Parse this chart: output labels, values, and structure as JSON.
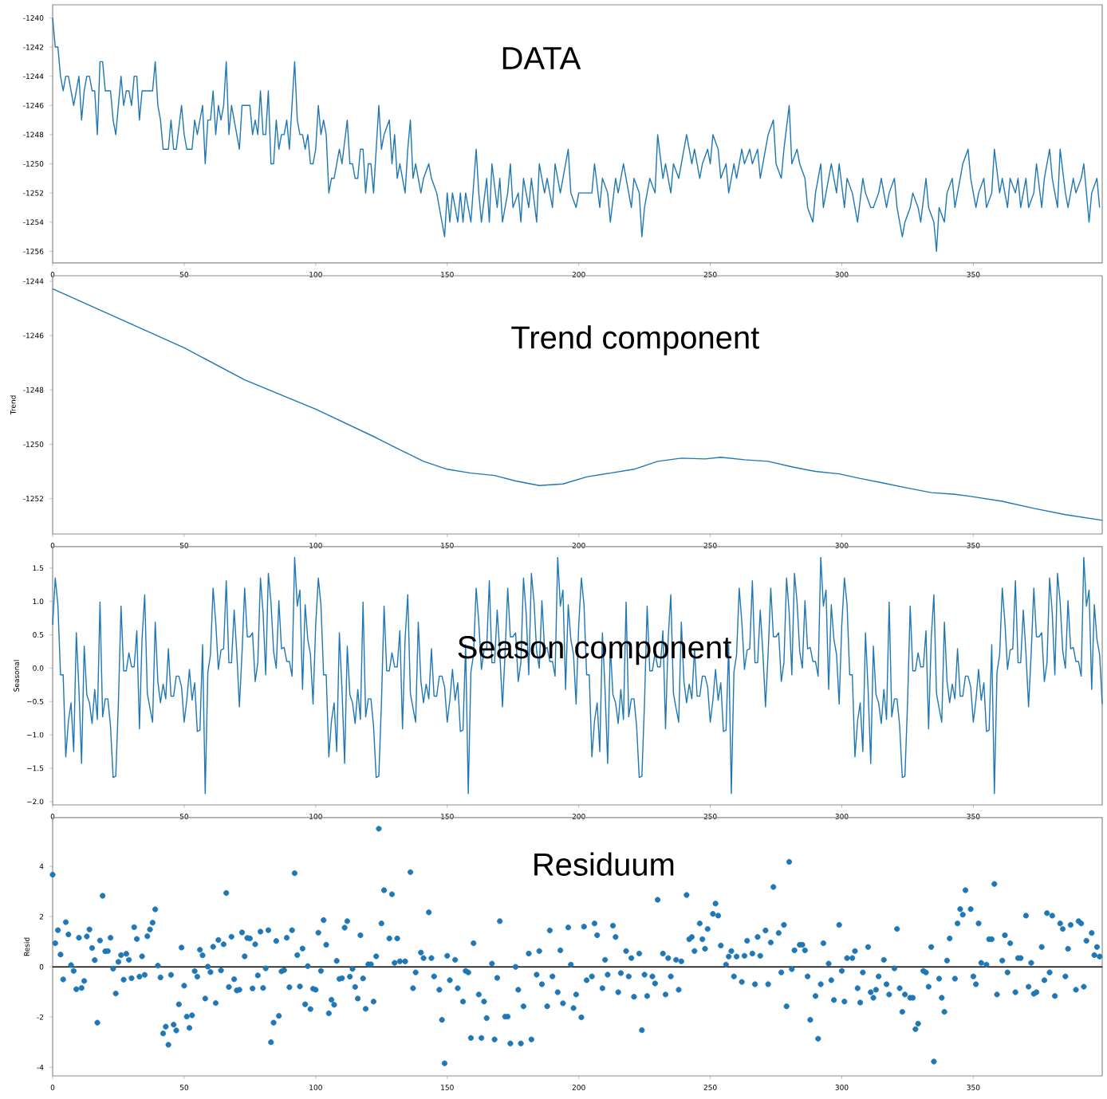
{
  "chart_data": [
    {
      "type": "line",
      "title": "DATA",
      "color": "#1f77b4",
      "xlim": [
        0,
        399
      ],
      "ylim": [
        -1256.8,
        -1239.1
      ],
      "xticks": [
        0,
        50,
        100,
        150,
        200,
        250,
        300,
        350
      ],
      "yticks": [
        -1240,
        -1242,
        -1244,
        -1246,
        -1248,
        -1250,
        -1252,
        -1254,
        -1256
      ],
      "x": [
        0,
        1,
        2,
        3,
        4,
        5,
        6,
        8,
        10,
        11,
        12,
        13,
        14,
        15,
        16,
        17,
        18,
        19,
        20,
        22,
        23,
        24,
        26,
        27,
        28,
        29,
        30,
        31,
        32,
        33,
        34,
        38,
        39,
        40,
        41,
        42,
        44,
        45,
        46,
        47,
        49,
        50,
        51,
        53,
        54,
        55,
        57,
        58,
        59,
        60,
        61,
        62,
        63,
        64,
        65,
        66,
        67,
        68,
        71,
        72,
        75,
        76,
        77,
        78,
        79,
        80,
        81,
        82,
        83,
        84,
        85,
        86,
        87,
        88,
        89,
        90,
        91,
        92,
        93,
        94,
        95,
        96,
        97,
        98,
        99,
        100,
        101,
        102,
        103,
        104,
        105,
        106,
        107,
        109,
        110,
        112,
        113,
        114,
        115,
        116,
        117,
        118,
        119,
        120,
        121,
        122,
        124,
        125,
        126,
        128,
        129,
        130,
        131,
        132,
        134,
        135,
        136,
        137,
        138,
        140,
        141,
        143,
        144,
        146,
        147,
        149,
        150,
        151,
        152,
        154,
        155,
        156,
        157,
        159,
        161,
        162,
        163,
        165,
        166,
        167,
        169,
        170,
        171,
        173,
        174,
        175,
        177,
        178,
        179,
        181,
        182,
        184,
        185,
        187,
        188,
        190,
        191,
        193,
        194,
        196,
        197,
        199,
        200,
        205,
        206,
        208,
        209,
        211,
        212,
        214,
        215,
        217,
        218,
        220,
        221,
        223,
        224,
        225,
        226,
        227,
        229,
        230,
        232,
        233,
        235,
        236,
        238,
        239,
        241,
        243,
        244,
        246,
        247,
        249,
        250,
        251,
        253,
        254,
        256,
        257,
        259,
        260,
        262,
        263,
        265,
        266,
        268,
        269,
        271,
        272,
        274,
        275,
        277,
        278,
        280,
        281,
        283,
        284,
        286,
        287,
        289,
        290,
        292,
        293,
        295,
        296,
        298,
        299,
        301,
        302,
        304,
        305,
        306,
        308,
        309,
        311,
        312,
        314,
        315,
        317,
        318,
        320,
        321,
        323,
        324,
        326,
        327,
        329,
        330,
        332,
        333,
        335,
        336,
        337,
        339,
        340,
        342,
        343,
        345,
        346,
        348,
        349,
        351,
        352,
        354,
        355,
        357,
        358,
        360,
        361,
        363,
        364,
        366,
        367,
        368,
        370,
        371,
        373,
        374,
        376,
        377,
        379,
        380,
        382,
        383,
        385,
        386,
        388,
        389,
        391,
        392,
        394,
        395,
        397,
        398
      ],
      "values": [
        -1240,
        -1242,
        -1242,
        -1244,
        -1245,
        -1244,
        -1244,
        -1246,
        -1244,
        -1247,
        -1245,
        -1244,
        -1244,
        -1245,
        -1245,
        -1248,
        -1243,
        -1243,
        -1245,
        -1245,
        -1247,
        -1248,
        -1244,
        -1246,
        -1245,
        -1245,
        -1246,
        -1244,
        -1244,
        -1247,
        -1245,
        -1245,
        -1243,
        -1246,
        -1247,
        -1249,
        -1249,
        -1247,
        -1249,
        -1249,
        -1246,
        -1248,
        -1249,
        -1249,
        -1247,
        -1248,
        -1246,
        -1250,
        -1247,
        -1247,
        -1245,
        -1248,
        -1246,
        -1247,
        -1246,
        -1243,
        -1248,
        -1246,
        -1249,
        -1246,
        -1246,
        -1248,
        -1247,
        -1248,
        -1245,
        -1248,
        -1248,
        -1245,
        -1250,
        -1250,
        -1247,
        -1249,
        -1248,
        -1248,
        -1247,
        -1249,
        -1246,
        -1243,
        -1247,
        -1248,
        -1248,
        -1249,
        -1248,
        -1250,
        -1250,
        -1249,
        -1246,
        -1248,
        -1247,
        -1248,
        -1252,
        -1251,
        -1251,
        -1249,
        -1250,
        -1247,
        -1250,
        -1250,
        -1251,
        -1251,
        -1249,
        -1249,
        -1252,
        -1250,
        -1250,
        -1252,
        -1246,
        -1249,
        -1248,
        -1247,
        -1250,
        -1248,
        -1251,
        -1250,
        -1252,
        -1249,
        -1247,
        -1251,
        -1250,
        -1252,
        -1251,
        -1250,
        -1251,
        -1252,
        -1253,
        -1255,
        -1252,
        -1254,
        -1252,
        -1254,
        -1252,
        -1254,
        -1252,
        -1254,
        -1249,
        -1252,
        -1254,
        -1251,
        -1254,
        -1250,
        -1253,
        -1251,
        -1254,
        -1252,
        -1250,
        -1253,
        -1252,
        -1254,
        -1251,
        -1253,
        -1251,
        -1254,
        -1250,
        -1252,
        -1251,
        -1253,
        -1250,
        -1252,
        -1251,
        -1249,
        -1252,
        -1253,
        -1252,
        -1252,
        -1250,
        -1253,
        -1251,
        -1252,
        -1254,
        -1251,
        -1252,
        -1250,
        -1251,
        -1253,
        -1251,
        -1252,
        -1255,
        -1253,
        -1252,
        -1251,
        -1252,
        -1248,
        -1251,
        -1250,
        -1252,
        -1250,
        -1251,
        -1250,
        -1248,
        -1250,
        -1249,
        -1251,
        -1250,
        -1249,
        -1250,
        -1248,
        -1249,
        -1251,
        -1250,
        -1252,
        -1250,
        -1251,
        -1249,
        -1250,
        -1249,
        -1250,
        -1249,
        -1251,
        -1249,
        -1248,
        -1247,
        -1250,
        -1251,
        -1249,
        -1246,
        -1250,
        -1249,
        -1250,
        -1251,
        -1253,
        -1254,
        -1252,
        -1250,
        -1253,
        -1251,
        -1250,
        -1252,
        -1250,
        -1253,
        -1251,
        -1252,
        -1253,
        -1254,
        -1251,
        -1252,
        -1253,
        -1253,
        -1252,
        -1251,
        -1253,
        -1252,
        -1251,
        -1253,
        -1255,
        -1254,
        -1253,
        -1252,
        -1253,
        -1254,
        -1251,
        -1253,
        -1254,
        -1256,
        -1253,
        -1254,
        -1252,
        -1251,
        -1253,
        -1251,
        -1250,
        -1249,
        -1251,
        -1253,
        -1252,
        -1251,
        -1253,
        -1252,
        -1249,
        -1252,
        -1251,
        -1253,
        -1251,
        -1252,
        -1251,
        -1253,
        -1251,
        -1253,
        -1252,
        -1250,
        -1253,
        -1251,
        -1249,
        -1251,
        -1253,
        -1249,
        -1252,
        -1253,
        -1251,
        -1252,
        -1251,
        -1250,
        -1254,
        -1252,
        -1251,
        -1253
      ]
    },
    {
      "type": "line",
      "title": "Trend component",
      "ylabel": "Trend",
      "color": "#1f77b4",
      "xlim": [
        0,
        399
      ],
      "ylim": [
        -1253.3,
        -1243.8
      ],
      "xticks": [
        0,
        50,
        100,
        150,
        200,
        250,
        300,
        350
      ],
      "yticks": [
        -1244,
        -1246,
        -1248,
        -1250,
        -1252
      ],
      "x": [
        0,
        50,
        73,
        100,
        123,
        132,
        141,
        150,
        159,
        168,
        176,
        185,
        194,
        203,
        212,
        221,
        230,
        239,
        248,
        254,
        263,
        272,
        281,
        290,
        299,
        307,
        316,
        325,
        334,
        343,
        349,
        361,
        373,
        385,
        399
      ],
      "values": [
        -1244.28,
        -1246.45,
        -1247.63,
        -1248.71,
        -1249.76,
        -1250.2,
        -1250.63,
        -1250.92,
        -1251.06,
        -1251.15,
        -1251.35,
        -1251.52,
        -1251.46,
        -1251.2,
        -1251.06,
        -1250.92,
        -1250.63,
        -1250.51,
        -1250.54,
        -1250.48,
        -1250.57,
        -1250.63,
        -1250.83,
        -1251.0,
        -1251.09,
        -1251.26,
        -1251.43,
        -1251.61,
        -1251.78,
        -1251.84,
        -1251.92,
        -1252.1,
        -1252.36,
        -1252.59,
        -1252.8
      ]
    },
    {
      "type": "line",
      "title": "Season component",
      "ylabel": "Seasonal",
      "color": "#1f77b4",
      "xlim": [
        0,
        399
      ],
      "ylim": [
        -2.05,
        1.82
      ],
      "xticks": [
        0,
        50,
        100,
        150,
        200,
        250,
        300,
        350
      ],
      "yticks": [
        {
          "value": 1.5,
          "label": "1.5"
        },
        {
          "value": 1,
          "label": "1.0"
        },
        {
          "value": 0.5,
          "label": "0.5"
        },
        {
          "value": 0,
          "label": "0.0"
        },
        {
          "value": -0.5,
          "label": "−0.5"
        },
        {
          "value": -1,
          "label": "−1.0"
        },
        {
          "value": -1.5,
          "label": "−1.5"
        },
        {
          "value": -2,
          "label": "−2.0"
        }
      ],
      "x": [
        0,
        1,
        2,
        3,
        4,
        5,
        6,
        7,
        8,
        9,
        10,
        11,
        12,
        13,
        14,
        15,
        16,
        17,
        18,
        19,
        20,
        21,
        22,
        23,
        24,
        25,
        26,
        27,
        28,
        29,
        30,
        31,
        32,
        33,
        34,
        35,
        36,
        37,
        38,
        39,
        40,
        41,
        42,
        43,
        44,
        45,
        46,
        47,
        48,
        49,
        50,
        51,
        52,
        53,
        54,
        55,
        56,
        57,
        58,
        59,
        60,
        61,
        62,
        63,
        64,
        65,
        66,
        67,
        68,
        69,
        70,
        71,
        72,
        73,
        74,
        75,
        76,
        77,
        78,
        79,
        80,
        81,
        82,
        83,
        84,
        85,
        86,
        87,
        88,
        89,
        90,
        91,
        92,
        93,
        94,
        95,
        96,
        97,
        98,
        99,
        100,
        101,
        102,
        103,
        104,
        105,
        106,
        107,
        108,
        109,
        110,
        111,
        112,
        113,
        114,
        115,
        116,
        117,
        118,
        119,
        120,
        121,
        122,
        123,
        124,
        125,
        126,
        127,
        128,
        129,
        130,
        131,
        132,
        133,
        134,
        135,
        136,
        137,
        138,
        139,
        140,
        141,
        142,
        143,
        144,
        145,
        146,
        147,
        148,
        149,
        150,
        151,
        152,
        153,
        154,
        155,
        156,
        157,
        158,
        159,
        160,
        161,
        162,
        163,
        164,
        165,
        166,
        167,
        168,
        169,
        170,
        171,
        172,
        173,
        174,
        175,
        176,
        177,
        178,
        179,
        180,
        181,
        182,
        183,
        184,
        185,
        186,
        187,
        188,
        189,
        190,
        191,
        192,
        193,
        194,
        195,
        196,
        197,
        198,
        199,
        200,
        201,
        202,
        203,
        204,
        205,
        206,
        207,
        208,
        209,
        210,
        211,
        212,
        213,
        214,
        215,
        216,
        217,
        218,
        219,
        220,
        221,
        222,
        223,
        224,
        225,
        226,
        227,
        228,
        229,
        230,
        231,
        232,
        233,
        234,
        235,
        236,
        237,
        238,
        239,
        240,
        241,
        242,
        243,
        244,
        245,
        246,
        247,
        248,
        249,
        250,
        251,
        252,
        253,
        254,
        255,
        256,
        257,
        258,
        259,
        260,
        261,
        262,
        263,
        264,
        265,
        266,
        267,
        268,
        269,
        270,
        271,
        272,
        273,
        274,
        275,
        276,
        277,
        278,
        279,
        280,
        281,
        282,
        283,
        284,
        285,
        286,
        287,
        288,
        289,
        290,
        291,
        292,
        293,
        294,
        295,
        296,
        297,
        298,
        299,
        300,
        301,
        302,
        303,
        304,
        305,
        306,
        307,
        308,
        309,
        310,
        311,
        312,
        313,
        314,
        315,
        316,
        317,
        318,
        319,
        320,
        321,
        322,
        323,
        324,
        325,
        326,
        327,
        328,
        329,
        330,
        331,
        332,
        333,
        334,
        335,
        336,
        337,
        338,
        339,
        340,
        341,
        342,
        343,
        344,
        345,
        346,
        347,
        348,
        349,
        350,
        351,
        352,
        353,
        354,
        355,
        356,
        357,
        358,
        359,
        360,
        361,
        362,
        363,
        364,
        365,
        366,
        367,
        368,
        369,
        370,
        371,
        372,
        373,
        374,
        375,
        376,
        377,
        378,
        379,
        380,
        381,
        382,
        383,
        384,
        385,
        386,
        387,
        388,
        389,
        390,
        391,
        392,
        393,
        394,
        395,
        396,
        397,
        398,
        399
      ],
      "values": [
        0.65,
        1.35,
        0.95,
        -0.1,
        -0.1,
        -1.33,
        -0.79,
        -0.52,
        -1.25,
        0.53,
        -0.32,
        -1.43,
        0.33,
        -0.4,
        -0.52,
        -0.83,
        -0.32,
        -0.77,
        0.99,
        -0.73,
        -0.46,
        -0.46,
        -0.87,
        -1.64,
        -1.62,
        -0.52,
        0.93,
        -0.04,
        -0.04,
        0.23,
        0.02,
        0.02,
        0.56,
        -0.91,
        0.45,
        1.1,
        -0.38,
        -0.6,
        -0.81,
        0.69,
        -0.2,
        -0.52,
        -0.24,
        -0.46,
        0.29,
        -0.42,
        -0.42,
        -0.12,
        -0.12,
        -0.28,
        -0.81,
        -0.48,
        -0.02,
        -0.48,
        -0.22,
        -0.95,
        -0.93,
        0.35,
        -1.88,
        -0.06,
        0.2,
        1.2,
        0.69,
        -0.02,
        0.27,
        0.29,
        1.31,
        0.08,
        0.08,
        0.87,
        0.23,
        -0.58,
        0.23,
        1.2,
        0.47,
        0.47,
        0.53,
        -0.2,
        0.08,
        1.35,
        0.83,
        -0.1,
        1.42,
        0.99,
        0.25,
        0.0,
        1.01,
        0.29,
        0.31,
        0.1,
        0.1,
        -0.12,
        1.66,
        0.93,
        1.17,
        -0.32,
        0.95,
        0.43,
        0.21,
        -0.54,
        0.65,
        1.35,
        0.95,
        -0.1,
        -0.1,
        -1.33,
        -0.79,
        -0.52,
        -1.25,
        0.53,
        -0.32,
        -1.43,
        0.33,
        -0.4,
        -0.52,
        -0.83,
        -0.32,
        -0.77,
        0.99,
        -0.73,
        -0.46,
        -0.46,
        -0.87,
        -1.64,
        -1.62,
        -0.52,
        0.93,
        -0.04,
        -0.04,
        0.23,
        0.02,
        0.02,
        0.56,
        -0.91,
        0.45,
        1.1,
        -0.38,
        -0.6,
        -0.81,
        0.69,
        -0.2,
        -0.52,
        -0.24,
        -0.46,
        0.29,
        -0.42,
        -0.42,
        -0.12,
        -0.12,
        -0.28,
        -0.81,
        -0.48,
        -0.02,
        -0.48,
        -0.22,
        -0.95,
        -0.93,
        0.35,
        -1.88,
        -0.06,
        0.2,
        1.2,
        0.69,
        -0.02,
        0.27,
        0.29,
        1.31,
        0.08,
        0.08,
        0.87,
        0.23,
        -0.58,
        0.23,
        1.2,
        0.47,
        0.47,
        0.53,
        -0.2,
        0.08,
        1.35,
        0.83,
        -0.1,
        1.42,
        0.99,
        0.25,
        0.0,
        1.01,
        0.29,
        0.31,
        0.1,
        0.1,
        -0.12,
        1.66,
        0.93,
        1.17,
        -0.32,
        0.95,
        0.43,
        0.21,
        -0.54,
        0.65,
        1.35,
        0.95,
        -0.1,
        -0.1,
        -1.33,
        -0.79,
        -0.52,
        -1.25,
        0.53,
        -0.32,
        -1.43,
        0.33,
        -0.4,
        -0.52,
        -0.83,
        -0.32,
        -0.77,
        0.99,
        -0.73,
        -0.46,
        -0.46,
        -0.87,
        -1.64,
        -1.62,
        -0.52,
        0.93,
        -0.04,
        -0.04,
        0.23,
        0.02,
        0.02,
        0.56,
        -0.91,
        0.45,
        1.1,
        -0.38,
        -0.6,
        -0.81,
        0.69,
        -0.2,
        -0.52,
        -0.24,
        -0.46,
        0.29,
        -0.42,
        -0.42,
        -0.12,
        -0.12,
        -0.28,
        -0.81,
        -0.48,
        -0.02,
        -0.48,
        -0.22,
        -0.95,
        -0.93,
        0.35,
        -1.88,
        -0.06,
        0.2,
        1.2,
        0.69,
        -0.02,
        0.27,
        0.29,
        1.31,
        0.08,
        0.08,
        0.87,
        0.23,
        -0.58,
        0.23,
        1.2,
        0.47,
        0.47,
        0.53,
        -0.2,
        0.08,
        1.35,
        0.83,
        -0.1,
        1.42,
        0.99,
        0.25,
        0.0,
        1.01,
        0.29,
        0.31,
        0.1,
        0.1,
        -0.12,
        1.66,
        0.93,
        1.17,
        -0.32,
        0.95,
        0.43,
        0.21,
        -0.54,
        0.65,
        1.35,
        0.95,
        -0.1,
        -0.1,
        -1.33,
        -0.79,
        -0.52,
        -1.25,
        0.53,
        -0.32,
        -1.43,
        0.33,
        -0.4,
        -0.52,
        -0.83,
        -0.32,
        -0.77,
        0.99,
        -0.73,
        -0.46,
        -0.46,
        -0.87,
        -1.64,
        -1.62,
        -0.52,
        0.93,
        -0.04,
        -0.04,
        0.23,
        0.02,
        0.02,
        0.56,
        -0.91,
        0.45,
        1.1,
        -0.38,
        -0.6,
        -0.81,
        0.69,
        -0.2,
        -0.52,
        -0.24,
        -0.46,
        0.29,
        -0.42,
        -0.42,
        -0.12,
        -0.12,
        -0.28,
        -0.81,
        -0.48,
        -0.02,
        -0.48,
        -0.22,
        -0.95,
        -0.93,
        0.35,
        -1.88,
        -0.06,
        0.2,
        1.2,
        0.69,
        -0.02,
        0.27,
        0.29,
        1.31,
        0.08,
        0.08,
        0.87,
        0.23,
        -0.58,
        0.23,
        1.2,
        0.47,
        0.47,
        0.53,
        -0.2,
        0.08,
        1.35,
        0.83,
        -0.1,
        1.42,
        0.99,
        0.25,
        0.0,
        1.01,
        0.29,
        0.31,
        0.1,
        0.1,
        -0.12,
        1.66,
        0.93,
        1.17,
        -0.32,
        0.95,
        0.43,
        0.21,
        -0.54
      ]
    },
    {
      "type": "scatter",
      "title": "Residuum",
      "ylabel": "Resid",
      "color": "#1f77b4",
      "marker": "circle",
      "xlim": [
        0,
        399
      ],
      "ylim": [
        -4.34,
        5.94
      ],
      "xticks": [
        0,
        50,
        100,
        150,
        200,
        250,
        300,
        350
      ],
      "yticks": [
        -4,
        -2,
        0,
        2,
        4
      ],
      "ref_lines": [
        {
          "axis": "y",
          "value": 0,
          "color": "#000000"
        }
      ],
      "x": [
        0,
        1,
        2,
        3,
        4,
        5,
        6,
        7,
        8,
        9,
        10,
        11,
        12,
        13,
        14,
        15,
        16,
        17,
        18,
        19,
        20,
        21,
        22,
        23,
        24,
        25,
        26,
        27,
        28,
        29,
        30,
        31,
        32,
        33,
        34,
        35,
        36,
        37,
        38,
        39,
        40,
        41,
        42,
        43,
        44,
        45,
        46,
        47,
        48,
        49,
        50,
        51,
        52,
        53,
        54,
        55,
        56,
        57,
        58,
        59,
        60,
        61,
        62,
        63,
        64,
        65,
        66,
        67,
        68,
        69,
        70,
        71,
        72,
        73,
        74,
        75,
        76,
        77,
        78,
        79,
        80,
        81,
        82,
        83,
        84,
        85,
        86,
        87,
        88,
        89,
        90,
        91,
        92,
        93,
        94,
        95,
        96,
        97,
        98,
        99,
        100,
        101,
        102,
        103,
        104,
        105,
        106,
        107,
        108,
        109,
        110,
        111,
        112,
        113,
        114,
        115,
        116,
        117,
        118,
        119,
        120,
        121,
        122,
        123,
        124,
        125,
        126,
        128,
        129,
        130,
        131,
        132,
        134,
        136,
        137,
        138,
        140,
        141,
        143,
        144,
        145,
        147,
        148,
        149,
        150,
        151,
        153,
        154,
        156,
        157,
        158,
        159,
        160,
        162,
        163,
        164,
        165,
        167,
        168,
        169,
        170,
        172,
        173,
        174,
        176,
        177,
        178,
        179,
        181,
        182,
        184,
        185,
        186,
        188,
        189,
        190,
        192,
        193,
        194,
        196,
        197,
        198,
        199,
        201,
        202,
        203,
        205,
        206,
        207,
        209,
        210,
        211,
        213,
        214,
        215,
        216,
        218,
        219,
        220,
        221,
        223,
        224,
        225,
        226,
        228,
        229,
        230,
        232,
        233,
        234,
        235,
        237,
        238,
        239,
        241,
        242,
        243,
        244,
        246,
        247,
        248,
        249,
        251,
        252,
        253,
        254,
        256,
        257,
        258,
        259,
        260,
        262,
        263,
        264,
        266,
        267,
        268,
        269,
        271,
        272,
        273,
        274,
        276,
        277,
        278,
        279,
        280,
        281,
        282,
        284,
        285,
        286,
        287,
        288,
        290,
        291,
        292,
        293,
        295,
        296,
        297,
        299,
        300,
        301,
        302,
        304,
        305,
        306,
        307,
        308,
        310,
        311,
        312,
        313,
        314,
        316,
        317,
        318,
        320,
        321,
        322,
        323,
        324,
        326,
        327,
        328,
        329,
        331,
        332,
        333,
        334,
        335,
        337,
        338,
        339,
        340,
        341,
        343,
        344,
        345,
        346,
        347,
        349,
        350,
        351,
        352,
        353,
        355,
        356,
        357,
        358,
        359,
        361,
        362,
        363,
        364,
        366,
        367,
        368,
        370,
        371,
        372,
        373,
        374,
        376,
        377,
        378,
        379,
        380,
        381,
        383,
        384,
        385,
        386,
        387,
        389,
        390,
        391,
        392,
        393,
        395,
        396,
        397,
        398
      ],
      "values": [
        3.67,
        0.94,
        1.46,
        0.49,
        -0.5,
        1.78,
        1.29,
        0.07,
        -0.16,
        -0.89,
        1.16,
        -0.84,
        -0.56,
        1.21,
        1.49,
        0.75,
        0.27,
        -2.22,
        1.05,
        2.83,
        0.62,
        0.63,
        1.16,
        -0.07,
        -1.06,
        0.2,
        0.47,
        -0.51,
        0.52,
        0.28,
        -0.45,
        1.58,
        1.11,
        -0.39,
        0.42,
        -0.32,
        1.22,
        1.49,
        1.76,
        2.29,
        0.05,
        -0.42,
        -2.65,
        -2.38,
        -3.1,
        -0.32,
        -2.3,
        -2.53,
        -1.49,
        0.77,
        -0.75,
        -1.98,
        -2.43,
        -1.93,
        -0.17,
        -0.39,
        0.68,
        0.46,
        -1.26,
        0.01,
        -0.21,
        0.8,
        -1.44,
        1.07,
        -0.14,
        0.9,
        2.94,
        -0.8,
        1.2,
        -0.49,
        -0.94,
        -0.91,
        1.37,
        0.42,
        1.15,
        1.13,
        -0.86,
        0.9,
        -0.34,
        1.4,
        -0.84,
        -0.06,
        1.46,
        -3.0,
        -2.22,
        1.03,
        -1.95,
        -0.18,
        -0.13,
        1.16,
        -0.81,
        1.46,
        3.73,
        0.47,
        -0.78,
        0.73,
        -1.49,
        0.03,
        -1.68,
        -0.87,
        -0.91,
        1.36,
        -0.16,
        1.86,
        0.88,
        -1.85,
        -1.31,
        -1.51,
        0.24,
        -0.48,
        -0.45,
        1.56,
        1.82,
        -0.39,
        -0.08,
        -0.8,
        -1.26,
        1.26,
        -0.46,
        -1.67,
        0.1,
        0.1,
        -1.38,
        0.42,
        5.5,
        1.73,
        3.05,
        1.13,
        2.89,
        0.16,
        1.13,
        0.22,
        0.22,
        3.77,
        -0.85,
        -0.22,
        0.57,
        0.35,
        2.17,
        0.35,
        -0.38,
        -0.91,
        -2.11,
        -3.84,
        0.44,
        -0.53,
        0.28,
        -0.85,
        -1.38,
        -0.16,
        -0.22,
        -2.83,
        0.94,
        -1.1,
        -2.83,
        -1.38,
        -2.04,
        0.13,
        -2.89,
        -0.44,
        1.82,
        -1.98,
        -1.98,
        -3.05,
        0,
        -0.91,
        -3.05,
        -1.57,
        0.53,
        -2.89,
        -0.31,
        0.63,
        -0.69,
        -1.57,
        1.45,
        -0.38,
        -1.01,
        0.66,
        -1.45,
        1.57,
        0.09,
        -1.64,
        -1.1,
        -2.01,
        1.6,
        -0.53,
        -0.38,
        1.73,
        1.26,
        -0.85,
        0.28,
        -0.31,
        1.64,
        1.19,
        -1.01,
        -0.25,
        0.63,
        -0.38,
        0.35,
        -1.19,
        0.53,
        -2.52,
        -0.31,
        -1.16,
        -0.38,
        -0.66,
        2.67,
        0.53,
        -1.1,
        0.35,
        -0.38,
        0.28,
        -0.91,
        0.22,
        2.86,
        1.1,
        1.19,
        0.63,
        1.73,
        1.1,
        0.72,
        1.51,
        2.11,
        2.52,
        2.04,
        0.85,
        0.09,
        0.41,
        0.63,
        -0.38,
        0.41,
        -0.6,
        0.44,
        1.04,
        0.53,
        -0.69,
        1.19,
        0.44,
        1.45,
        -0.69,
        0.97,
        3.18,
        1.35,
        -0.22,
        1.67,
        -1.57,
        4.18,
        -0.09,
        0.66,
        0.88,
        0.88,
        0.66,
        -0.38,
        -2.11,
        -1.16,
        -2.86,
        -0.69,
        0.94,
        0.13,
        -0.53,
        -1.32,
        1.67,
        -0.16,
        -1.38,
        0.35,
        0.35,
        0.63,
        -0.85,
        -1.42,
        -0.22,
        0.79,
        -1.01,
        -1.23,
        -0.91,
        -0.38,
        0.28,
        -0.69,
        -1.1,
        -0.06,
        1.51,
        -0.85,
        -1.79,
        -1.1,
        -1.23,
        -1.23,
        -2.48,
        -2.26,
        -0.16,
        -0.22,
        -0.79,
        0.79,
        -3.77,
        -0.47,
        -1.23,
        -1.79,
        0.25,
        1.13,
        -0.47,
        1.73,
        2.3,
        2.08,
        3.05,
        2.3,
        -0.38,
        -0.69,
        1.73,
        0.16,
        0.09,
        1.1,
        1.1,
        3.3,
        -1.1,
        0.25,
        1.26,
        -0.22,
        0.94,
        -1.01,
        0.35,
        0.35,
        2.04,
        -0.79,
        0.16,
        -1.07,
        -1.01,
        0.79,
        -0.53,
        2.14,
        -0.22,
        2.04,
        -1.16,
        1.73,
        1.51,
        -0.38,
        0.72,
        1.67,
        -0.91,
        1.82,
        1.73,
        -0.79,
        1.04,
        1.35,
        0.47,
        0.79,
        0.41
      ]
    }
  ]
}
